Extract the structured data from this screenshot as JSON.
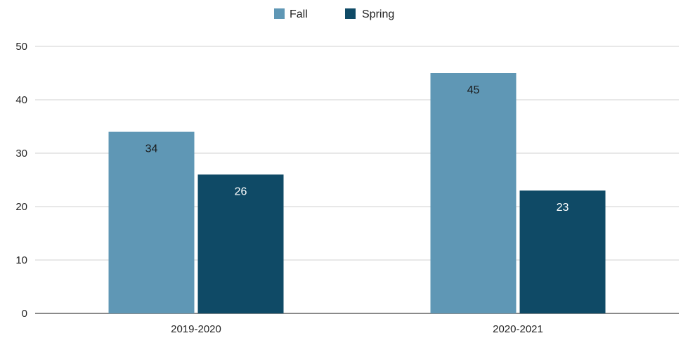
{
  "chart_data": {
    "type": "bar",
    "title": "",
    "xlabel": "",
    "ylabel": "",
    "categories": [
      "2019-2020",
      "2020-2021"
    ],
    "series": [
      {
        "name": "Fall",
        "values": [
          34,
          45
        ],
        "color": "#5f97b5",
        "label_color": "#1a1a1a"
      },
      {
        "name": "Spring",
        "values": [
          26,
          23
        ],
        "color": "#0f4a66",
        "label_color": "#ffffff"
      }
    ],
    "ylim": [
      0,
      50
    ],
    "yticks": [
      0,
      10,
      20,
      30,
      40,
      50
    ],
    "grid": true,
    "gridline_color": "#d0d0d0",
    "axis_color": "#444444",
    "legend_position": "top-center",
    "data_labels": true
  }
}
